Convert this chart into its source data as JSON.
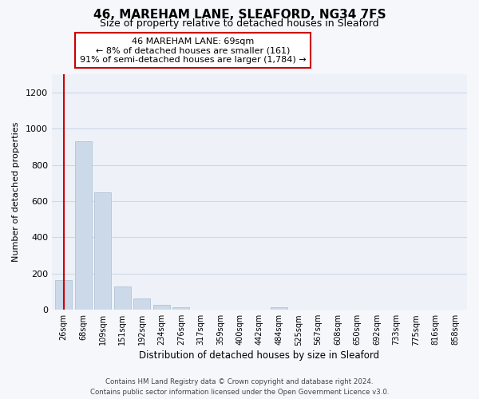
{
  "title": "46, MAREHAM LANE, SLEAFORD, NG34 7FS",
  "subtitle": "Size of property relative to detached houses in Sleaford",
  "xlabel": "Distribution of detached houses by size in Sleaford",
  "ylabel": "Number of detached properties",
  "bar_labels": [
    "26sqm",
    "68sqm",
    "109sqm",
    "151sqm",
    "192sqm",
    "234sqm",
    "276sqm",
    "317sqm",
    "359sqm",
    "400sqm",
    "442sqm",
    "484sqm",
    "525sqm",
    "567sqm",
    "608sqm",
    "650sqm",
    "692sqm",
    "733sqm",
    "775sqm",
    "816sqm",
    "858sqm"
  ],
  "bar_values": [
    163,
    930,
    650,
    128,
    63,
    28,
    14,
    0,
    0,
    0,
    0,
    13,
    0,
    0,
    0,
    0,
    0,
    0,
    0,
    0,
    0
  ],
  "bar_color": "#ccd9e8",
  "bar_edge_color": "#b0c4d8",
  "vline_color": "#cc0000",
  "annotation_line1": "46 MAREHAM LANE: 69sqm",
  "annotation_line2": "← 8% of detached houses are smaller (161)",
  "annotation_line3": "91% of semi-detached houses are larger (1,784) →",
  "annotation_box_color": "#ffffff",
  "annotation_box_edge": "#cc0000",
  "ylim": [
    0,
    1300
  ],
  "yticks": [
    0,
    200,
    400,
    600,
    800,
    1000,
    1200
  ],
  "grid_color": "#cdd8e8",
  "bg_color": "#eef2f8",
  "fig_bg_color": "#f5f7fb",
  "footer_line1": "Contains HM Land Registry data © Crown copyright and database right 2024.",
  "footer_line2": "Contains public sector information licensed under the Open Government Licence v3.0."
}
